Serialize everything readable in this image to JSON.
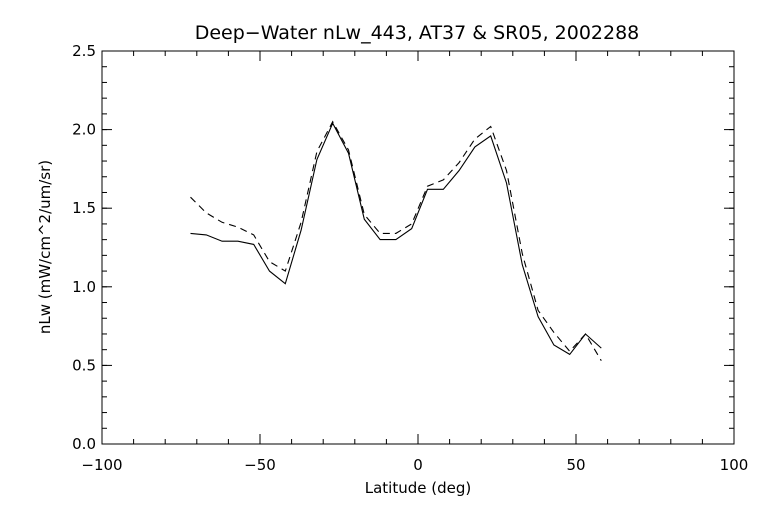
{
  "chart_data": {
    "type": "line",
    "title": "Deep−Water nLw_443, AT37 & SR05, 2002288",
    "xlabel": "Latitude (deg)",
    "ylabel": "nLw (mW/cm^2/um/sr)",
    "xlim": [
      -100,
      100
    ],
    "ylim": [
      0.0,
      2.5
    ],
    "x_ticks": [
      -100,
      -50,
      0,
      50,
      100
    ],
    "x_tick_labels": [
      "−100",
      "−50",
      "0",
      "50",
      "100"
    ],
    "y_ticks": [
      0.0,
      0.5,
      1.0,
      1.5,
      2.0,
      2.5
    ],
    "y_tick_labels": [
      "0.0",
      "0.5",
      "1.0",
      "1.5",
      "2.0",
      "2.5"
    ],
    "x_minor_step": 10,
    "y_minor_step": 0.1,
    "grid": false,
    "legend": "none",
    "series": [
      {
        "style": "solid",
        "color": "#000000",
        "points": [
          [
            -72,
            1.34
          ],
          [
            -67,
            1.33
          ],
          [
            -62,
            1.29
          ],
          [
            -57,
            1.29
          ],
          [
            -52,
            1.27
          ],
          [
            -47,
            1.1
          ],
          [
            -42,
            1.02
          ],
          [
            -37,
            1.36
          ],
          [
            -32,
            1.81
          ],
          [
            -27,
            2.04
          ],
          [
            -22,
            1.85
          ],
          [
            -17,
            1.43
          ],
          [
            -12,
            1.3
          ],
          [
            -7,
            1.3
          ],
          [
            -2,
            1.37
          ],
          [
            3,
            1.62
          ],
          [
            8,
            1.62
          ],
          [
            13,
            1.74
          ],
          [
            18,
            1.89
          ],
          [
            23,
            1.96
          ],
          [
            28,
            1.66
          ],
          [
            33,
            1.14
          ],
          [
            38,
            0.81
          ],
          [
            43,
            0.63
          ],
          [
            48,
            0.57
          ],
          [
            53,
            0.7
          ],
          [
            58,
            0.61
          ]
        ]
      },
      {
        "style": "dashed",
        "color": "#000000",
        "points": [
          [
            -72,
            1.57
          ],
          [
            -67,
            1.47
          ],
          [
            -62,
            1.41
          ],
          [
            -57,
            1.38
          ],
          [
            -52,
            1.33
          ],
          [
            -47,
            1.16
          ],
          [
            -42,
            1.1
          ],
          [
            -37,
            1.41
          ],
          [
            -32,
            1.86
          ],
          [
            -27,
            2.05
          ],
          [
            -22,
            1.87
          ],
          [
            -17,
            1.46
          ],
          [
            -12,
            1.34
          ],
          [
            -7,
            1.34
          ],
          [
            -2,
            1.4
          ],
          [
            3,
            1.64
          ],
          [
            8,
            1.68
          ],
          [
            13,
            1.79
          ],
          [
            18,
            1.94
          ],
          [
            23,
            2.02
          ],
          [
            28,
            1.74
          ],
          [
            33,
            1.21
          ],
          [
            38,
            0.85
          ],
          [
            43,
            0.71
          ],
          [
            48,
            0.59
          ],
          [
            53,
            0.7
          ],
          [
            58,
            0.53
          ]
        ]
      }
    ]
  }
}
